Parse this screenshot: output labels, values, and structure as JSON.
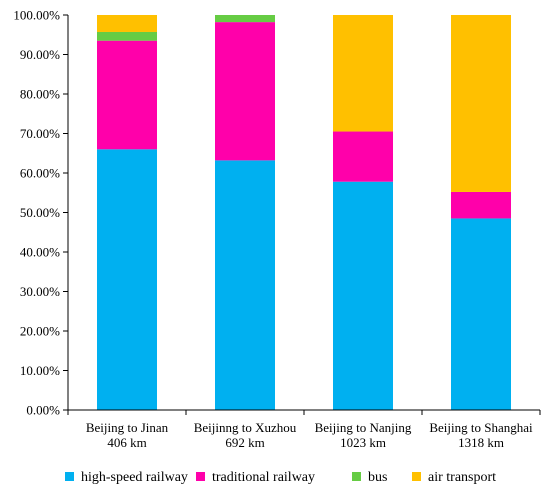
{
  "chart_data": {
    "type": "bar",
    "stacked": true,
    "percent": true,
    "title": "",
    "xlabel": "",
    "ylabel": "",
    "ylim": [
      0,
      100
    ],
    "yticks": [
      "0.00%",
      "10.00%",
      "20.00%",
      "30.00%",
      "40.00%",
      "50.00%",
      "60.00%",
      "70.00%",
      "80.00%",
      "90.00%",
      "100.00%"
    ],
    "categories": [
      [
        "Beijing to Jinan",
        "406 km"
      ],
      [
        "Beijinng to Xuzhou",
        "692 km"
      ],
      [
        "Beijing to Nanjing",
        "1023 km"
      ],
      [
        "Beijing to Shanghai",
        "1318 km"
      ]
    ],
    "series": [
      {
        "name": "high-speed railway",
        "color": "#00B0F0",
        "values": [
          66.0,
          63.2,
          57.8,
          48.5
        ]
      },
      {
        "name": "traditional railway",
        "color": "#FF00AA",
        "values": [
          27.5,
          35.0,
          12.7,
          6.7
        ]
      },
      {
        "name": "bus",
        "color": "#66CC44",
        "values": [
          2.2,
          1.8,
          0.0,
          0.0
        ]
      },
      {
        "name": "air transport",
        "color": "#FFC000",
        "values": [
          4.3,
          0.0,
          29.5,
          44.8
        ]
      }
    ],
    "legend": "bottom",
    "grid": false
  }
}
